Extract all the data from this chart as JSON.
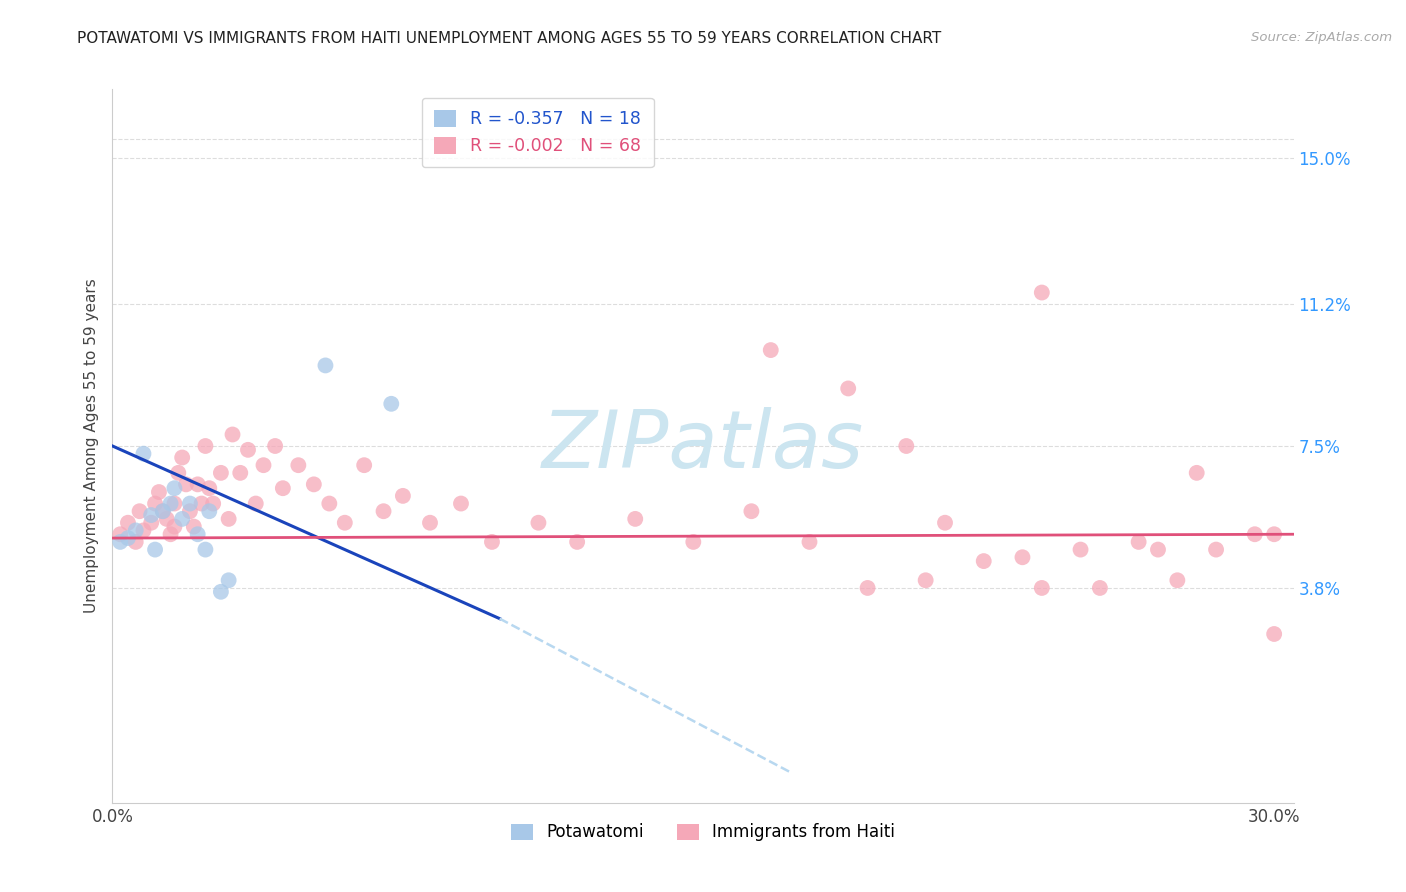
{
  "title": "POTAWATOMI VS IMMIGRANTS FROM HAITI UNEMPLOYMENT AMONG AGES 55 TO 59 YEARS CORRELATION CHART",
  "source": "Source: ZipAtlas.com",
  "ylabel": "Unemployment Among Ages 55 to 59 years",
  "xlim": [
    0.0,
    0.305
  ],
  "ylim": [
    -0.018,
    0.168
  ],
  "xticks": [
    0.0,
    0.03,
    0.06,
    0.09,
    0.12,
    0.15,
    0.18,
    0.21,
    0.24,
    0.27,
    0.3
  ],
  "ytick_positions": [
    0.038,
    0.075,
    0.112,
    0.15
  ],
  "ytick_labels": [
    "3.8%",
    "7.5%",
    "11.2%",
    "15.0%"
  ],
  "color_potawatomi": "#a8c8e8",
  "color_haiti": "#f5a8b8",
  "line_color_potawatomi": "#1a44bb",
  "line_color_haiti": "#e0507a",
  "line_color_potawatomi_ext": "#b8d8f0",
  "legend_r_potawatomi": "R = -0.357",
  "legend_n_potawatomi": "N = 18",
  "legend_r_haiti": "R = -0.002",
  "legend_n_haiti": "N = 68",
  "pot_line_x0": 0.0,
  "pot_line_y0": 0.075,
  "pot_line_x1": 0.1,
  "pot_line_y1": 0.03,
  "pot_line_dash_x1": 0.175,
  "pot_line_dash_y1": -0.01,
  "hai_line_x0": 0.0,
  "hai_line_y0": 0.051,
  "hai_line_x1": 0.305,
  "hai_line_y1": 0.052,
  "potawatomi_x": [
    0.002,
    0.004,
    0.006,
    0.008,
    0.01,
    0.011,
    0.013,
    0.015,
    0.016,
    0.018,
    0.02,
    0.022,
    0.024,
    0.025,
    0.028,
    0.03,
    0.055,
    0.072
  ],
  "potawatomi_y": [
    0.05,
    0.051,
    0.053,
    0.073,
    0.057,
    0.048,
    0.058,
    0.06,
    0.064,
    0.056,
    0.06,
    0.052,
    0.048,
    0.058,
    0.037,
    0.04,
    0.096,
    0.086
  ],
  "haiti_x": [
    0.002,
    0.004,
    0.006,
    0.007,
    0.008,
    0.01,
    0.011,
    0.012,
    0.013,
    0.014,
    0.015,
    0.016,
    0.016,
    0.017,
    0.018,
    0.019,
    0.02,
    0.021,
    0.022,
    0.023,
    0.024,
    0.025,
    0.026,
    0.028,
    0.03,
    0.031,
    0.033,
    0.035,
    0.037,
    0.039,
    0.042,
    0.044,
    0.048,
    0.052,
    0.056,
    0.06,
    0.065,
    0.07,
    0.075,
    0.082,
    0.09,
    0.098,
    0.11,
    0.12,
    0.135,
    0.15,
    0.165,
    0.18,
    0.195,
    0.21,
    0.215,
    0.225,
    0.235,
    0.24,
    0.25,
    0.255,
    0.265,
    0.27,
    0.275,
    0.285,
    0.295,
    0.3,
    0.17,
    0.19,
    0.205,
    0.24,
    0.28,
    0.3
  ],
  "haiti_y": [
    0.052,
    0.055,
    0.05,
    0.058,
    0.053,
    0.055,
    0.06,
    0.063,
    0.058,
    0.056,
    0.052,
    0.054,
    0.06,
    0.068,
    0.072,
    0.065,
    0.058,
    0.054,
    0.065,
    0.06,
    0.075,
    0.064,
    0.06,
    0.068,
    0.056,
    0.078,
    0.068,
    0.074,
    0.06,
    0.07,
    0.075,
    0.064,
    0.07,
    0.065,
    0.06,
    0.055,
    0.07,
    0.058,
    0.062,
    0.055,
    0.06,
    0.05,
    0.055,
    0.05,
    0.056,
    0.05,
    0.058,
    0.05,
    0.038,
    0.04,
    0.055,
    0.045,
    0.046,
    0.038,
    0.048,
    0.038,
    0.05,
    0.048,
    0.04,
    0.048,
    0.052,
    0.052,
    0.1,
    0.09,
    0.075,
    0.115,
    0.068,
    0.026
  ],
  "background_color": "#ffffff",
  "grid_color": "#dddddd",
  "watermark_color": "#cce5f0"
}
